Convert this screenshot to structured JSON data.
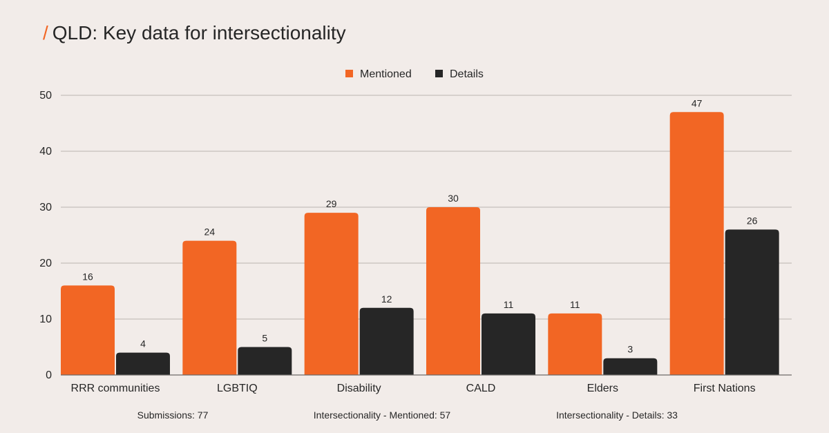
{
  "header": {
    "slash": "/",
    "title": "QLD: Key data for intersectionality"
  },
  "chart_data": {
    "type": "bar",
    "title": "QLD: Key data for intersectionality",
    "xlabel": "",
    "ylabel": "",
    "categories": [
      "RRR communities",
      "LGBTIQ",
      "Disability",
      "CALD",
      "Elders",
      "First Nations"
    ],
    "series": [
      {
        "name": "Mentioned",
        "color": "#f26624",
        "values": [
          16,
          24,
          29,
          30,
          11,
          47
        ]
      },
      {
        "name": "Details",
        "color": "#262626",
        "values": [
          4,
          5,
          12,
          11,
          3,
          26
        ]
      }
    ],
    "ylim": [
      0,
      50
    ],
    "yticks": [
      0,
      10,
      20,
      30,
      40,
      50
    ],
    "grid": true,
    "legend_position": "top-center",
    "data_labels": true
  },
  "footer": {
    "stats": [
      "Submissions: 77",
      "Intersectionality - Mentioned: 57",
      "Intersectionality - Details: 33"
    ]
  }
}
